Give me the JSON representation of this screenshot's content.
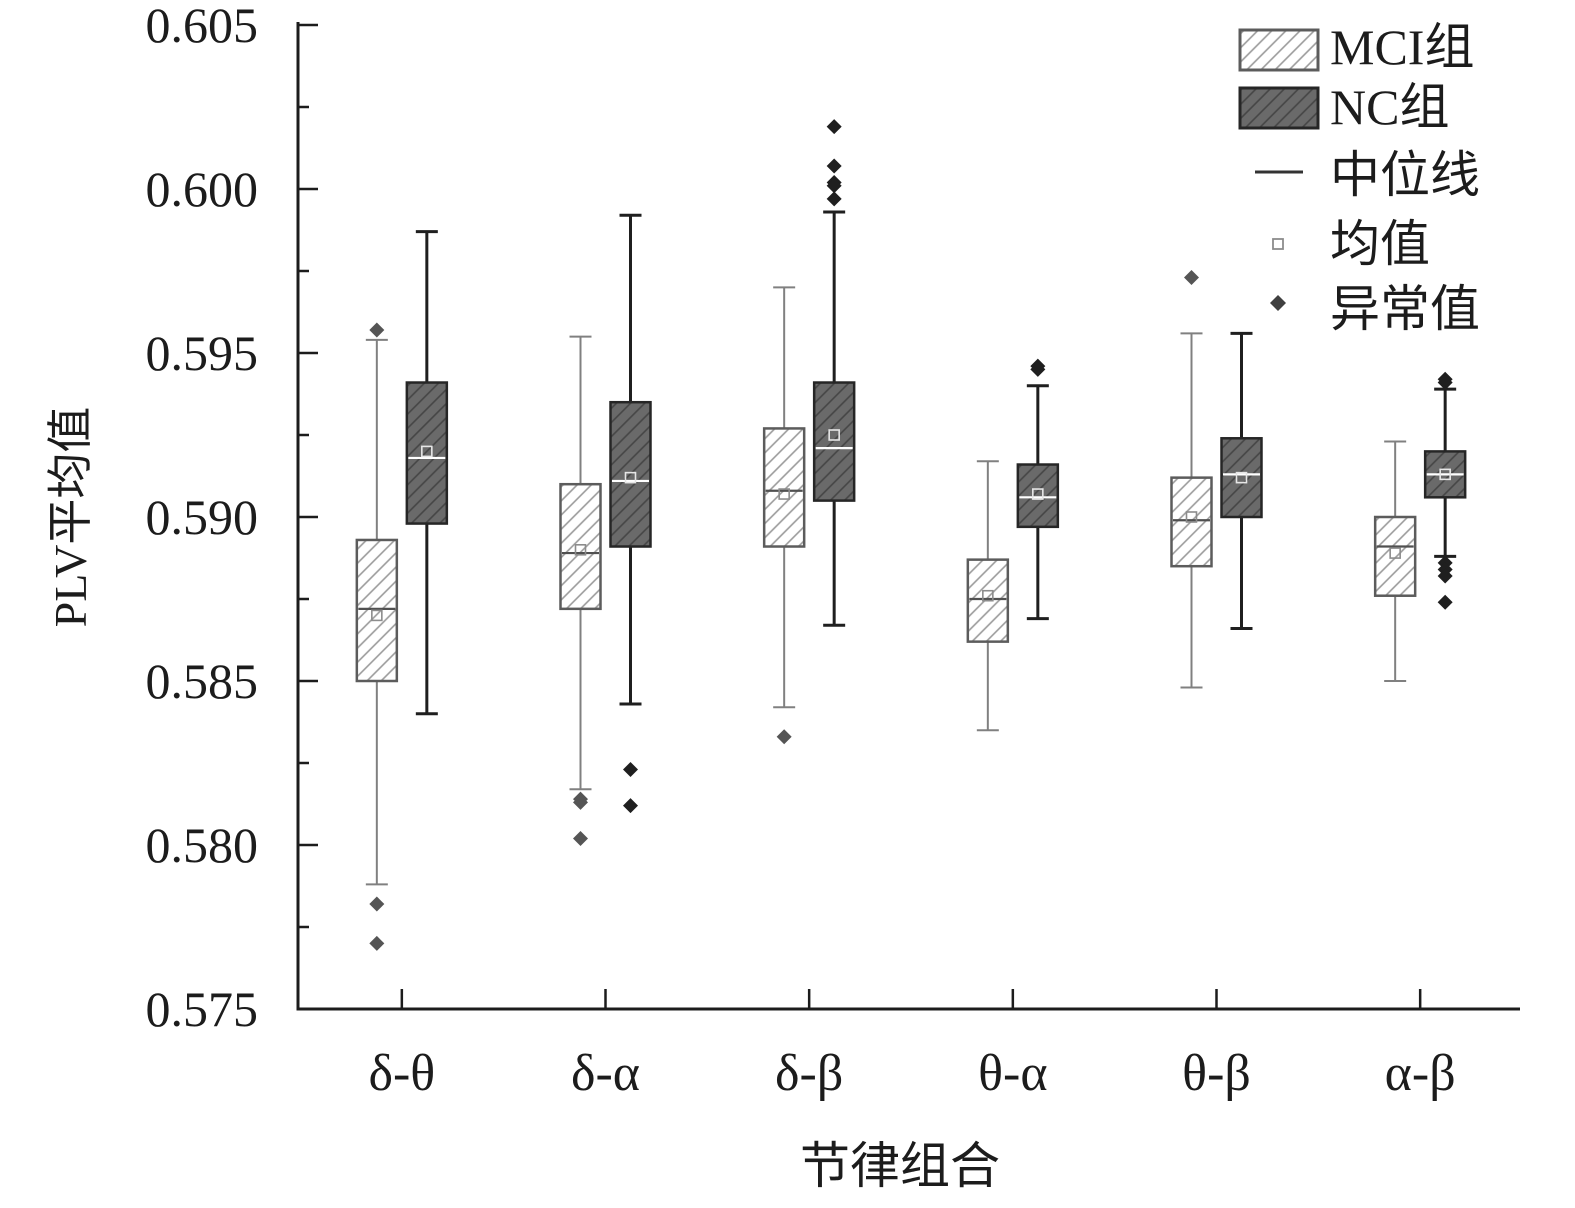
{
  "chart_data": {
    "type": "box",
    "xlabel": "节律组合",
    "ylabel": "PLV平均值",
    "ylim": [
      0.575,
      0.605
    ],
    "yticks": [
      "0.575",
      "0.580",
      "0.585",
      "0.590",
      "0.595",
      "0.600",
      "0.605"
    ],
    "grid": false,
    "categories": [
      "δ-θ",
      "δ-α",
      "δ-β",
      "θ-α",
      "θ-β",
      "α-β"
    ],
    "series": [
      {
        "name": "MCI组",
        "fill": "#ffffff",
        "hatch": "#9a9a9a",
        "edge": "#5c5c5c",
        "whisker": "#808080",
        "median_color": "#505050",
        "mean_color": "#8c8c8c",
        "outlier_color": "#555555",
        "boxes": [
          {
            "whisker_low": 0.5788,
            "q1": 0.585,
            "median": 0.5872,
            "mean": 0.587,
            "q3": 0.5893,
            "whisker_high": 0.5954,
            "outliers": [
              0.5957,
              0.5782,
              0.577
            ]
          },
          {
            "whisker_low": 0.5817,
            "q1": 0.5872,
            "median": 0.5889,
            "mean": 0.589,
            "q3": 0.591,
            "whisker_high": 0.5955,
            "outliers": [
              0.5814,
              0.5813,
              0.5802
            ]
          },
          {
            "whisker_low": 0.5842,
            "q1": 0.5891,
            "median": 0.5908,
            "mean": 0.5907,
            "q3": 0.5927,
            "whisker_high": 0.597,
            "outliers": [
              0.5833
            ]
          },
          {
            "whisker_low": 0.5835,
            "q1": 0.5862,
            "median": 0.5875,
            "mean": 0.5876,
            "q3": 0.5887,
            "whisker_high": 0.5917,
            "outliers": []
          },
          {
            "whisker_low": 0.5848,
            "q1": 0.5885,
            "median": 0.5899,
            "mean": 0.59,
            "q3": 0.5912,
            "whisker_high": 0.5956,
            "outliers": [
              0.5973
            ]
          },
          {
            "whisker_low": 0.585,
            "q1": 0.5876,
            "median": 0.5891,
            "mean": 0.5889,
            "q3": 0.59,
            "whisker_high": 0.5923,
            "outliers": []
          }
        ]
      },
      {
        "name": "NC组",
        "fill": "#6a6a6a",
        "hatch": "#454545",
        "edge": "#262626",
        "whisker": "#1f1f1f",
        "median_color": "#ffffff",
        "mean_color": "#e6e6e6",
        "outlier_color": "#1f1f1f",
        "boxes": [
          {
            "whisker_low": 0.584,
            "q1": 0.5898,
            "median": 0.5918,
            "mean": 0.592,
            "q3": 0.5941,
            "whisker_high": 0.5987,
            "outliers": []
          },
          {
            "whisker_low": 0.5843,
            "q1": 0.5891,
            "median": 0.5911,
            "mean": 0.5912,
            "q3": 0.5935,
            "whisker_high": 0.5992,
            "outliers": [
              0.5823,
              0.5812
            ]
          },
          {
            "whisker_low": 0.5867,
            "q1": 0.5905,
            "median": 0.5921,
            "mean": 0.5925,
            "q3": 0.5941,
            "whisker_high": 0.5993,
            "outliers": [
              0.6019,
              0.6007,
              0.6002,
              0.6001,
              0.5997
            ]
          },
          {
            "whisker_low": 0.5869,
            "q1": 0.5897,
            "median": 0.5906,
            "mean": 0.5907,
            "q3": 0.5916,
            "whisker_high": 0.594,
            "outliers": [
              0.5946,
              0.5945
            ]
          },
          {
            "whisker_low": 0.5866,
            "q1": 0.59,
            "median": 0.5913,
            "mean": 0.5912,
            "q3": 0.5924,
            "whisker_high": 0.5956,
            "outliers": []
          },
          {
            "whisker_low": 0.5888,
            "q1": 0.5906,
            "median": 0.5913,
            "mean": 0.5913,
            "q3": 0.592,
            "whisker_high": 0.5939,
            "outliers": [
              0.5942,
              0.5941,
              0.5886,
              0.5884,
              0.5882,
              0.5874
            ]
          }
        ]
      }
    ],
    "legend": {
      "position": "top-right",
      "median_label": "中位线",
      "mean_label": "均值",
      "outlier_label": "异常值"
    }
  }
}
